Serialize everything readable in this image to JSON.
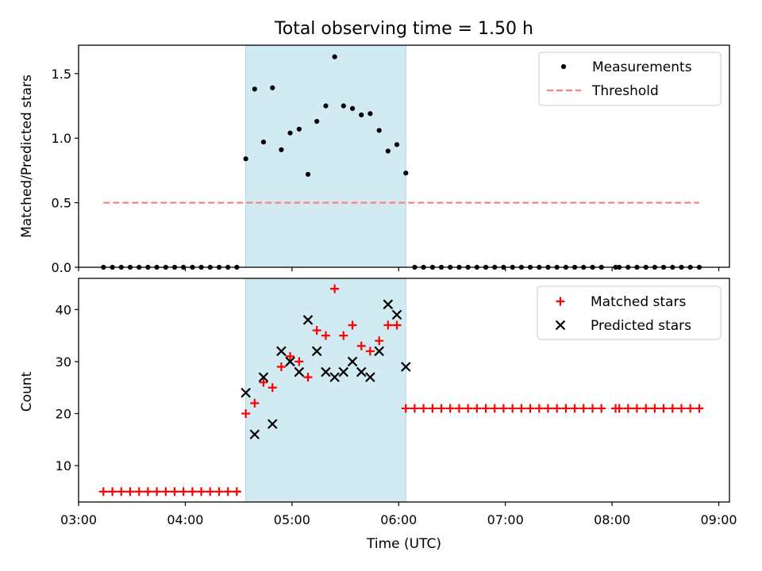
{
  "title": "Total observing time = 1.50 h",
  "colors": {
    "highlight": "#add8e6",
    "measurements": "#000000",
    "threshold": "#ff8080",
    "matched": "#ff0000",
    "predicted": "#000000"
  },
  "chart_data": [
    {
      "type": "scatter",
      "ylabel": "Matched/Predicted stars",
      "xlim": [
        3.0,
        9.1
      ],
      "ylim": [
        0,
        1.72
      ],
      "yticks": [
        {
          "value": 0.0,
          "label": "0.0"
        },
        {
          "value": 0.5,
          "label": "0.5"
        },
        {
          "value": 1.0,
          "label": "1.0"
        },
        {
          "value": 1.5,
          "label": "1.5"
        }
      ],
      "legend_position": "top-right",
      "shaded_interval": [
        4.567,
        6.067
      ],
      "threshold": {
        "name": "Threshold",
        "value": 0.5,
        "x_range": [
          3.233,
          8.817
        ]
      },
      "series": [
        {
          "name": "Measurements",
          "points": [
            [
              3.233,
              0
            ],
            [
              3.317,
              0
            ],
            [
              3.4,
              0
            ],
            [
              3.483,
              0
            ],
            [
              3.567,
              0
            ],
            [
              3.65,
              0
            ],
            [
              3.733,
              0
            ],
            [
              3.817,
              0
            ],
            [
              3.9,
              0
            ],
            [
              3.983,
              0
            ],
            [
              4.067,
              0
            ],
            [
              4.15,
              0
            ],
            [
              4.233,
              0
            ],
            [
              4.317,
              0
            ],
            [
              4.4,
              0
            ],
            [
              4.483,
              0
            ],
            [
              4.567,
              0.84
            ],
            [
              4.65,
              1.38
            ],
            [
              4.733,
              0.97
            ],
            [
              4.817,
              1.39
            ],
            [
              4.9,
              0.91
            ],
            [
              4.983,
              1.04
            ],
            [
              5.067,
              1.07
            ],
            [
              5.15,
              0.72
            ],
            [
              5.233,
              1.13
            ],
            [
              5.317,
              1.25
            ],
            [
              5.4,
              1.63
            ],
            [
              5.483,
              1.25
            ],
            [
              5.567,
              1.23
            ],
            [
              5.65,
              1.18
            ],
            [
              5.733,
              1.19
            ],
            [
              5.817,
              1.06
            ],
            [
              5.9,
              0.9
            ],
            [
              5.983,
              0.95
            ],
            [
              6.067,
              0.73
            ],
            [
              6.15,
              0
            ],
            [
              6.233,
              0
            ],
            [
              6.317,
              0
            ],
            [
              6.4,
              0
            ],
            [
              6.483,
              0
            ],
            [
              6.567,
              0
            ],
            [
              6.65,
              0
            ],
            [
              6.733,
              0
            ],
            [
              6.817,
              0
            ],
            [
              6.9,
              0
            ],
            [
              6.983,
              0
            ],
            [
              7.067,
              0
            ],
            [
              7.15,
              0
            ],
            [
              7.233,
              0
            ],
            [
              7.317,
              0
            ],
            [
              7.4,
              0
            ],
            [
              7.483,
              0
            ],
            [
              7.567,
              0
            ],
            [
              7.65,
              0
            ],
            [
              7.733,
              0
            ],
            [
              7.817,
              0
            ],
            [
              7.9,
              0
            ],
            [
              8.033,
              0
            ],
            [
              8.067,
              0
            ],
            [
              8.15,
              0
            ],
            [
              8.233,
              0
            ],
            [
              8.317,
              0
            ],
            [
              8.4,
              0
            ],
            [
              8.483,
              0
            ],
            [
              8.567,
              0
            ],
            [
              8.65,
              0
            ],
            [
              8.733,
              0
            ],
            [
              8.817,
              0
            ]
          ]
        }
      ]
    },
    {
      "type": "scatter",
      "xlabel": "Time (UTC)",
      "ylabel": "Count",
      "xlim": [
        3.0,
        9.1
      ],
      "ylim": [
        3,
        46
      ],
      "xticks": [
        {
          "value": 3,
          "label": "03:00"
        },
        {
          "value": 4,
          "label": "04:00"
        },
        {
          "value": 5,
          "label": "05:00"
        },
        {
          "value": 6,
          "label": "06:00"
        },
        {
          "value": 7,
          "label": "07:00"
        },
        {
          "value": 8,
          "label": "08:00"
        },
        {
          "value": 9,
          "label": "09:00"
        }
      ],
      "yticks": [
        {
          "value": 10,
          "label": "10"
        },
        {
          "value": 20,
          "label": "20"
        },
        {
          "value": 30,
          "label": "30"
        },
        {
          "value": 40,
          "label": "40"
        }
      ],
      "legend_position": "top-right",
      "shaded_interval": [
        4.567,
        6.067
      ],
      "series": [
        {
          "name": "Matched stars",
          "marker": "plus",
          "points": [
            [
              3.233,
              5
            ],
            [
              3.317,
              5
            ],
            [
              3.4,
              5
            ],
            [
              3.483,
              5
            ],
            [
              3.567,
              5
            ],
            [
              3.65,
              5
            ],
            [
              3.733,
              5
            ],
            [
              3.817,
              5
            ],
            [
              3.9,
              5
            ],
            [
              3.983,
              5
            ],
            [
              4.067,
              5
            ],
            [
              4.15,
              5
            ],
            [
              4.233,
              5
            ],
            [
              4.317,
              5
            ],
            [
              4.4,
              5
            ],
            [
              4.483,
              5
            ],
            [
              4.567,
              20
            ],
            [
              4.65,
              22
            ],
            [
              4.733,
              26
            ],
            [
              4.817,
              25
            ],
            [
              4.9,
              29
            ],
            [
              4.983,
              31
            ],
            [
              5.067,
              30
            ],
            [
              5.15,
              27
            ],
            [
              5.233,
              36
            ],
            [
              5.317,
              35
            ],
            [
              5.4,
              44
            ],
            [
              5.483,
              35
            ],
            [
              5.567,
              37
            ],
            [
              5.65,
              33
            ],
            [
              5.733,
              32
            ],
            [
              5.817,
              34
            ],
            [
              5.9,
              37
            ],
            [
              5.983,
              37
            ],
            [
              6.067,
              21
            ],
            [
              6.15,
              21
            ],
            [
              6.233,
              21
            ],
            [
              6.317,
              21
            ],
            [
              6.4,
              21
            ],
            [
              6.483,
              21
            ],
            [
              6.567,
              21
            ],
            [
              6.65,
              21
            ],
            [
              6.733,
              21
            ],
            [
              6.817,
              21
            ],
            [
              6.9,
              21
            ],
            [
              6.983,
              21
            ],
            [
              7.067,
              21
            ],
            [
              7.15,
              21
            ],
            [
              7.233,
              21
            ],
            [
              7.317,
              21
            ],
            [
              7.4,
              21
            ],
            [
              7.483,
              21
            ],
            [
              7.567,
              21
            ],
            [
              7.65,
              21
            ],
            [
              7.733,
              21
            ],
            [
              7.817,
              21
            ],
            [
              7.9,
              21
            ],
            [
              8.033,
              21
            ],
            [
              8.067,
              21
            ],
            [
              8.15,
              21
            ],
            [
              8.233,
              21
            ],
            [
              8.317,
              21
            ],
            [
              8.4,
              21
            ],
            [
              8.483,
              21
            ],
            [
              8.567,
              21
            ],
            [
              8.65,
              21
            ],
            [
              8.733,
              21
            ],
            [
              8.817,
              21
            ]
          ]
        },
        {
          "name": "Predicted stars",
          "marker": "x",
          "points": [
            [
              4.567,
              24
            ],
            [
              4.65,
              16
            ],
            [
              4.733,
              27
            ],
            [
              4.817,
              18
            ],
            [
              4.9,
              32
            ],
            [
              4.983,
              30
            ],
            [
              5.067,
              28
            ],
            [
              5.15,
              38
            ],
            [
              5.233,
              32
            ],
            [
              5.317,
              28
            ],
            [
              5.4,
              27
            ],
            [
              5.483,
              28
            ],
            [
              5.567,
              30
            ],
            [
              5.65,
              28
            ],
            [
              5.733,
              27
            ],
            [
              5.817,
              32
            ],
            [
              5.9,
              41
            ],
            [
              5.983,
              39
            ],
            [
              6.067,
              29
            ]
          ]
        }
      ]
    }
  ]
}
